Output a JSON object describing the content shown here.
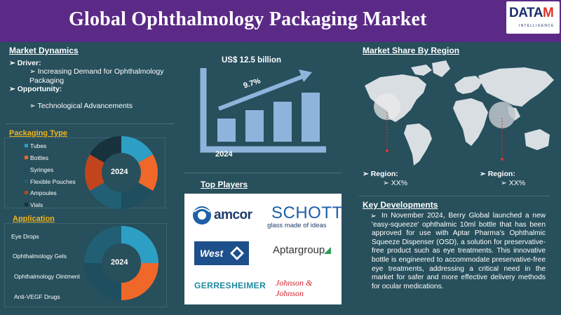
{
  "header": {
    "title": "Global Ophthalmology Packaging Market"
  },
  "logo": {
    "brand_a": "DATA",
    "brand_b": "M",
    "tagline": "INTELLIGENCE"
  },
  "market_dynamics": {
    "title": "Market Dynamics",
    "driver_label": "Driver:",
    "driver_item": "Increasing Demand for Ophthalmology Packaging",
    "opportunity_label": "Opportunity:",
    "opportunity_item": "Technological Advancements"
  },
  "growth": {
    "market_value": "US$ 12.5 billion",
    "cagr": "9.7%",
    "year": "2024"
  },
  "packaging_type": {
    "title": "Packaging Type",
    "center_label": "2024",
    "items": [
      {
        "label": "Tubes",
        "color": "#2e9fc4"
      },
      {
        "label": "Bottles",
        "color": "#f0672a"
      },
      {
        "label": "Syringes",
        "color": "#1f4e5f"
      },
      {
        "label": "Flexible Pouches",
        "color": "#215f74"
      },
      {
        "label": "Ampoules",
        "color": "#c2441c"
      },
      {
        "label": "Vials",
        "color": "#17323c"
      }
    ]
  },
  "application": {
    "title": "Application",
    "center_label": "2024",
    "items": [
      {
        "label": "Eye Drops",
        "color": "#2e9fc4"
      },
      {
        "label": "Ophthalmology Gels",
        "color": "#f0672a"
      },
      {
        "label": "Ophthalmology Ointment",
        "color": "#215f74"
      },
      {
        "label": "Anti-VEGF Drugs",
        "color": "#1f4e5f"
      }
    ]
  },
  "top_players": {
    "title": "Top Players",
    "logos": [
      "amcor",
      "SCHOTT",
      "glass made of ideas",
      "West",
      "Aptargroup",
      "GERRESHEIMER",
      "Johnson & Johnson"
    ]
  },
  "market_share": {
    "title": "Market Share By Region",
    "region_label": "Region:",
    "left_value": "XX%",
    "right_value": "XX%"
  },
  "key_developments": {
    "title": "Key Developments",
    "text": "In November 2024, Berry Global launched a new 'easy-squeeze' ophthalmic 10ml bottle that has been approved for use with Aptar Pharma's Ophthalmic Squeeze Dispenser (OSD), a solution for preservative-free product such as eye treatments. This innovative bottle is engineered to accommodate preservative-free eye treatments, addressing a critical need in the market for safer and more effective delivery methods for ocular medications."
  }
}
